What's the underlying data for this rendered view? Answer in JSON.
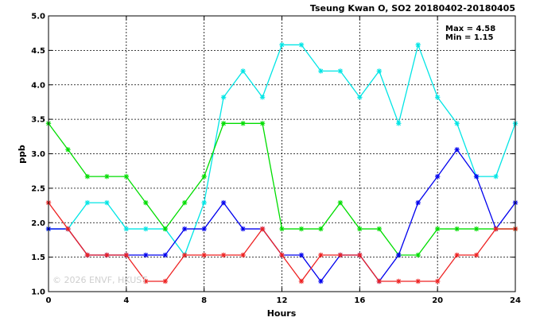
{
  "chart_data": {
    "type": "line",
    "title": "Tseung Kwan O, SO2 20180402-20180405",
    "xlabel": "Hours",
    "ylabel": "ppb",
    "xlim": [
      0,
      24
    ],
    "ylim": [
      1.0,
      5.0
    ],
    "xticks": [
      0,
      4,
      8,
      12,
      16,
      20,
      24
    ],
    "yticks": [
      1.0,
      1.5,
      2.0,
      2.5,
      3.0,
      3.5,
      4.0,
      4.5,
      5.0
    ],
    "grid": true,
    "stats": {
      "max_label": "Max = 4.58",
      "min_label": "Min = 1.15"
    },
    "watermark": "© 2026 ENVF, HKUST",
    "x": [
      0,
      1,
      2,
      3,
      4,
      5,
      6,
      7,
      8,
      9,
      10,
      11,
      12,
      13,
      14,
      15,
      16,
      17,
      18,
      19,
      20,
      21,
      22,
      23,
      24
    ],
    "series": [
      {
        "color": "#00e5e5",
        "values": [
          1.91,
          1.91,
          2.29,
          2.29,
          1.91,
          1.91,
          1.91,
          1.53,
          2.29,
          3.82,
          4.2,
          3.82,
          4.58,
          4.58,
          4.2,
          4.2,
          3.82,
          4.2,
          3.44,
          4.58,
          3.82,
          3.44,
          2.67,
          2.67,
          3.44
        ]
      },
      {
        "color": "#00dd00",
        "values": [
          3.44,
          3.06,
          2.67,
          2.67,
          2.67,
          2.29,
          1.91,
          2.29,
          2.67,
          3.44,
          3.44,
          3.44,
          1.91,
          1.91,
          1.91,
          2.29,
          1.91,
          1.91,
          1.53,
          1.53,
          1.91,
          1.91,
          1.91,
          1.91,
          1.91
        ]
      },
      {
        "color": "#0000ee",
        "values": [
          1.91,
          1.91,
          1.53,
          1.53,
          1.53,
          1.53,
          1.53,
          1.91,
          1.91,
          2.29,
          1.91,
          1.91,
          1.53,
          1.53,
          1.15,
          1.53,
          1.53,
          1.15,
          1.53,
          2.29,
          2.67,
          3.06,
          2.67,
          1.91,
          2.29
        ]
      },
      {
        "color": "#ee2222",
        "values": [
          2.29,
          1.91,
          1.53,
          1.53,
          1.53,
          1.15,
          1.15,
          1.53,
          1.53,
          1.53,
          1.53,
          1.91,
          1.53,
          1.15,
          1.53,
          1.53,
          1.53,
          1.15,
          1.15,
          1.15,
          1.15,
          1.53,
          1.53,
          1.91,
          1.91
        ]
      }
    ]
  }
}
